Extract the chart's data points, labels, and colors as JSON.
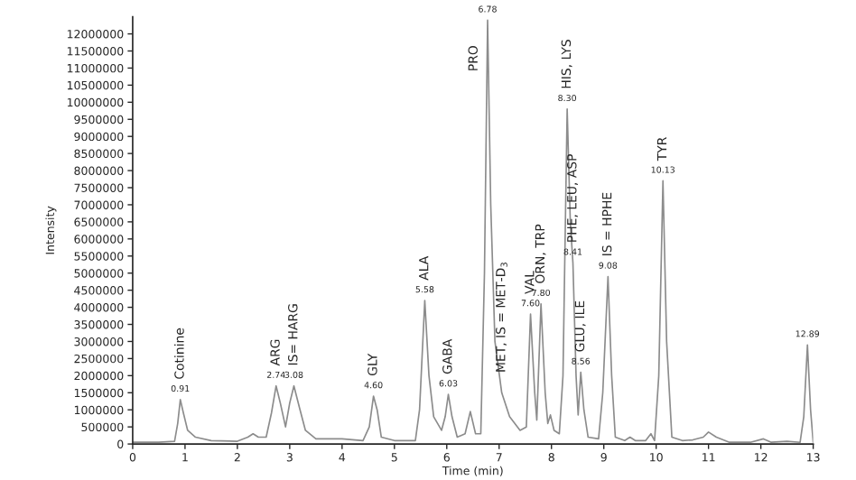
{
  "chart_data": {
    "type": "line",
    "xlabel": "Time (min)",
    "ylabel": "Intensity",
    "xlim": [
      0,
      13
    ],
    "xticks": [
      0,
      1,
      2,
      3,
      4,
      5,
      6,
      7,
      8,
      9,
      10,
      11,
      12,
      13
    ],
    "ylim": [
      0,
      12500000
    ],
    "yticks": [
      0,
      500000,
      1000000,
      1500000,
      2000000,
      2500000,
      3000000,
      3500000,
      4000000,
      4500000,
      5000000,
      5500000,
      6000000,
      6500000,
      7000000,
      7500000,
      8000000,
      8500000,
      9000000,
      9500000,
      10000000,
      10500000,
      11000000,
      11500000,
      12000000
    ],
    "grid": false,
    "marker": "none",
    "line_style": "solid",
    "series": [
      {
        "color": "#8c8c8c",
        "x": [
          0,
          0.5,
          0.8,
          0.86,
          0.91,
          0.97,
          1.05,
          1.2,
          1.5,
          2.0,
          2.2,
          2.3,
          2.4,
          2.55,
          2.65,
          2.74,
          2.82,
          2.92,
          3.0,
          3.08,
          3.18,
          3.3,
          3.5,
          4.0,
          4.4,
          4.52,
          4.6,
          4.67,
          4.75,
          5.0,
          5.4,
          5.48,
          5.58,
          5.66,
          5.75,
          5.9,
          5.97,
          6.03,
          6.1,
          6.2,
          6.35,
          6.45,
          6.55,
          6.65,
          6.72,
          6.78,
          6.84,
          6.92,
          7.05,
          7.2,
          7.4,
          7.52,
          7.6,
          7.68,
          7.72,
          7.8,
          7.88,
          7.93,
          7.98,
          8.05,
          8.15,
          8.22,
          8.3,
          8.36,
          8.41,
          8.47,
          8.51,
          8.56,
          8.62,
          8.7,
          8.9,
          8.98,
          9.08,
          9.15,
          9.22,
          9.4,
          9.5,
          9.6,
          9.8,
          9.9,
          9.97,
          10.05,
          10.13,
          10.2,
          10.3,
          10.5,
          10.7,
          10.9,
          11.0,
          11.15,
          11.4,
          11.8,
          12.05,
          12.2,
          12.5,
          12.75,
          12.82,
          12.89,
          12.95,
          13
        ],
        "values": [
          50000,
          50000,
          80000,
          600000,
          1300000,
          900000,
          400000,
          200000,
          100000,
          80000,
          200000,
          300000,
          200000,
          200000,
          900000,
          1700000,
          1200000,
          500000,
          1200000,
          1700000,
          1100000,
          400000,
          150000,
          150000,
          100000,
          500000,
          1400000,
          1000000,
          200000,
          100000,
          100000,
          1000000,
          4200000,
          2000000,
          800000,
          400000,
          800000,
          1450000,
          800000,
          200000,
          300000,
          950000,
          300000,
          300000,
          5000000,
          12400000,
          7000000,
          3000000,
          1500000,
          800000,
          400000,
          500000,
          3800000,
          1500000,
          700000,
          4100000,
          1500000,
          600000,
          850000,
          400000,
          300000,
          2000000,
          9800000,
          6500000,
          5300000,
          2000000,
          850000,
          2100000,
          1000000,
          200000,
          150000,
          1500000,
          4900000,
          2000000,
          200000,
          100000,
          200000,
          100000,
          100000,
          300000,
          100000,
          2000000,
          7700000,
          3000000,
          200000,
          100000,
          120000,
          200000,
          350000,
          200000,
          50000,
          50000,
          150000,
          50000,
          80000,
          50000,
          800000,
          2900000,
          1000000,
          50000
        ]
      }
    ],
    "annotations": [
      {
        "text": "0.91",
        "x": 0.91,
        "y": 1300000
      },
      {
        "text": "2.74",
        "x": 2.74,
        "y": 1700000
      },
      {
        "text": "3.08",
        "x": 3.08,
        "y": 1700000
      },
      {
        "text": "4.60",
        "x": 4.6,
        "y": 1400000
      },
      {
        "text": "5.58",
        "x": 5.58,
        "y": 4200000
      },
      {
        "text": "6.03",
        "x": 6.03,
        "y": 1450000
      },
      {
        "text": "6.78",
        "x": 6.78,
        "y": 12400000
      },
      {
        "text": "7.60",
        "x": 7.6,
        "y": 3800000
      },
      {
        "text": "7.80",
        "x": 7.8,
        "y": 4100000
      },
      {
        "text": "8.30",
        "x": 8.3,
        "y": 9800000
      },
      {
        "text": "8.41",
        "x": 8.41,
        "y": 5300000
      },
      {
        "text": "8.56",
        "x": 8.56,
        "y": 2100000
      },
      {
        "text": "9.08",
        "x": 9.08,
        "y": 4900000
      },
      {
        "text": "10.13",
        "x": 10.13,
        "y": 7700000
      },
      {
        "text": "12.89",
        "x": 12.89,
        "y": 2900000
      },
      {
        "text": "Cotinine",
        "x": 0.91,
        "y": 1300000
      },
      {
        "text": "ARG",
        "x": 2.74,
        "y": 1700000
      },
      {
        "text": "IS= HARG",
        "x": 3.08,
        "y": 1700000
      },
      {
        "text": "GLY",
        "x": 4.6,
        "y": 1400000
      },
      {
        "text": "ALA",
        "x": 5.58,
        "y": 4200000
      },
      {
        "text": "GABA",
        "x": 6.03,
        "y": 1450000
      },
      {
        "text": "PRO",
        "x": 6.78,
        "y": 12400000
      },
      {
        "text": "MET, IS = MET-D$_{3}$",
        "x": 7.05,
        "y": 1500000
      },
      {
        "text": "VAL",
        "x": 7.6,
        "y": 3800000
      },
      {
        "text": "ORN, TRP",
        "x": 7.8,
        "y": 4100000
      },
      {
        "text": "HIS, LYS",
        "x": 8.3,
        "y": 9800000
      },
      {
        "text": "PHE, LEU, ASP",
        "x": 8.41,
        "y": 5300000
      },
      {
        "text": "GLU, ILE",
        "x": 8.56,
        "y": 2100000
      },
      {
        "text": "IS = HPHE",
        "x": 9.08,
        "y": 4900000
      },
      {
        "text": "TYR",
        "x": 10.13,
        "y": 7700000
      }
    ]
  }
}
